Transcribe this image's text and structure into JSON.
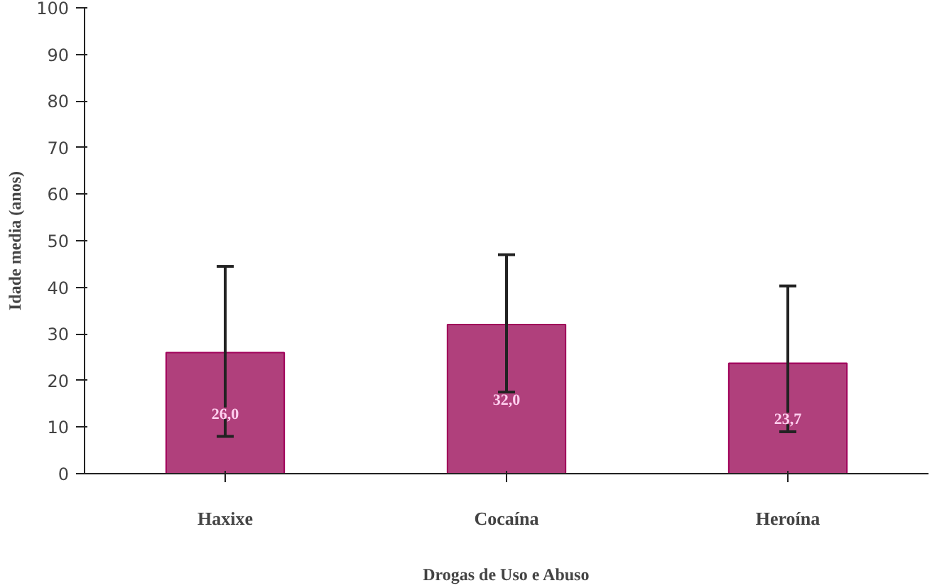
{
  "chart_data": {
    "type": "bar",
    "xlabel": "Drogas de Uso e Abuso",
    "ylabel": "Idade media (anos)",
    "categories": [
      "Haxixe",
      "Cocaína",
      "Heroína"
    ],
    "values": [
      26.0,
      32.0,
      23.7
    ],
    "errors": [
      [
        8,
        44.5
      ],
      [
        17.5,
        47
      ],
      [
        9,
        40.3
      ]
    ],
    "value_labels": [
      "26,0",
      "32,0",
      "23,7"
    ],
    "color": "#b0407c",
    "ylim": [
      0,
      100
    ],
    "yticks": [
      0,
      10,
      20,
      30,
      40,
      50,
      60,
      70,
      80,
      90,
      100
    ],
    "grid": false
  }
}
